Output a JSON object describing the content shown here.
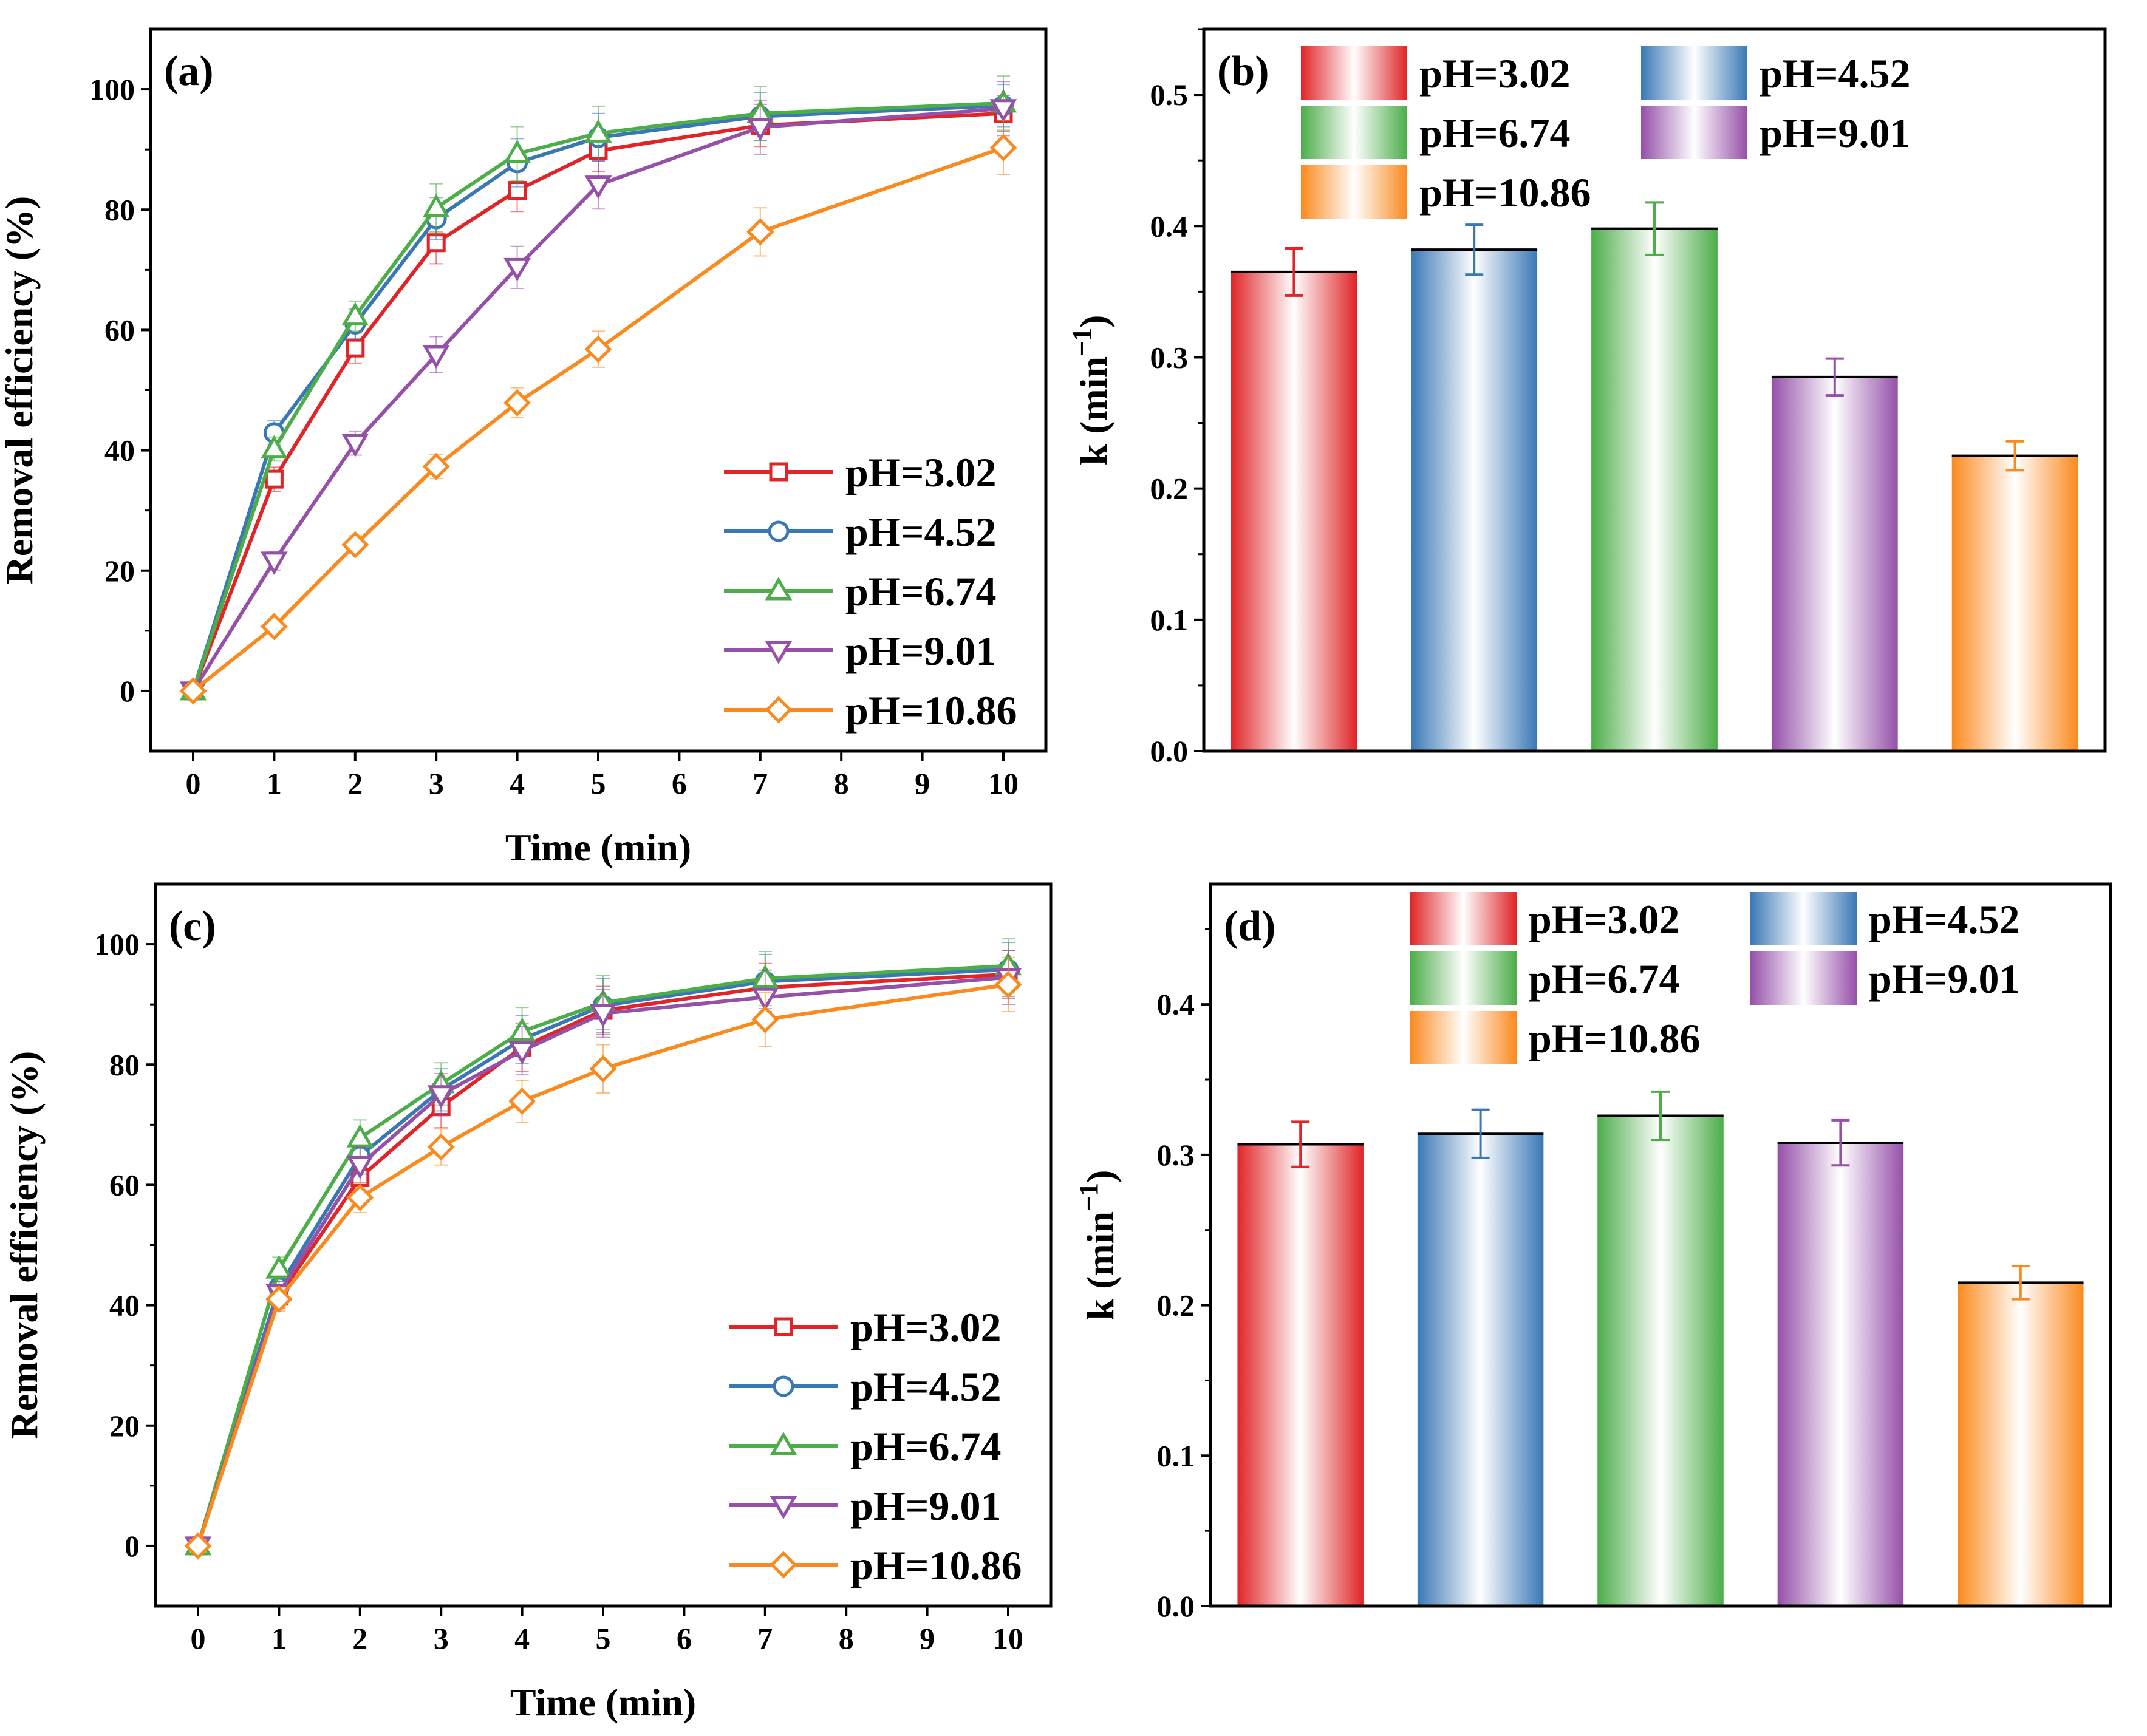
{
  "figure": {
    "series_colors": {
      "pH=3.02": "#E02427",
      "pH=4.52": "#3A78B5",
      "pH=6.74": "#4CAD49",
      "pH=9.01": "#9550A8",
      "pH=10.86": "#FA8A1E"
    }
  },
  "chart_data": [
    {
      "panel": "(a)",
      "type": "line",
      "x_categories": [
        "0",
        "1",
        "2",
        "3",
        "4",
        "5",
        "6",
        "7",
        "8",
        "9",
        "10"
      ],
      "xlabel": "Time (min)",
      "ylabel": "Removal efficiency (%)",
      "ylim": [
        -10,
        110
      ],
      "yticks": [
        0,
        20,
        40,
        60,
        80,
        100
      ],
      "legend_position": "bottom-right",
      "series": [
        {
          "name": "pH=3.02",
          "marker": "square",
          "x": [
            0,
            1,
            2,
            3,
            4,
            5,
            7,
            10
          ],
          "y": [
            0,
            35.2,
            57.0,
            74.5,
            83.2,
            89.8,
            94.0,
            96.0
          ],
          "err": [
            0.5,
            2.0,
            2.5,
            3.5,
            3.5,
            3.5,
            3.5,
            3.0
          ]
        },
        {
          "name": "pH=4.52",
          "marker": "circle",
          "x": [
            0,
            1,
            2,
            3,
            4,
            5,
            7,
            10
          ],
          "y": [
            0,
            42.9,
            61.0,
            78.5,
            87.8,
            92.0,
            95.5,
            97.3
          ],
          "err": [
            0.5,
            2.0,
            2.5,
            3.5,
            4.0,
            4.0,
            4.0,
            3.5
          ]
        },
        {
          "name": "pH=6.74",
          "marker": "triangle-up",
          "x": [
            0,
            1,
            2,
            3,
            4,
            5,
            7,
            10
          ],
          "y": [
            0,
            40.2,
            62.3,
            80.3,
            89.3,
            92.7,
            96.0,
            97.7
          ],
          "err": [
            0.5,
            2.0,
            2.5,
            4.0,
            4.5,
            4.5,
            4.5,
            4.5
          ]
        },
        {
          "name": "pH=9.01",
          "marker": "triangle-down",
          "x": [
            0,
            1,
            2,
            3,
            4,
            5,
            7,
            10
          ],
          "y": [
            0,
            21.6,
            41.2,
            55.9,
            70.4,
            84.1,
            93.7,
            96.8
          ],
          "err": [
            0.5,
            1.5,
            2.0,
            3.0,
            3.5,
            4.0,
            4.5,
            4.5
          ]
        },
        {
          "name": "pH=10.86",
          "marker": "diamond",
          "x": [
            0,
            1,
            2,
            3,
            4,
            5,
            7,
            10
          ],
          "y": [
            0,
            10.7,
            24.3,
            37.3,
            47.9,
            56.8,
            76.3,
            90.3
          ],
          "err": [
            0.5,
            1.0,
            1.5,
            2.0,
            2.5,
            3.0,
            4.0,
            4.5
          ]
        }
      ]
    },
    {
      "panel": "(b)",
      "type": "bar",
      "categories": [
        "pH=3.02",
        "pH=4.52",
        "pH=6.74",
        "pH=9.01",
        "pH=10.86"
      ],
      "values": [
        0.365,
        0.382,
        0.398,
        0.285,
        0.225
      ],
      "errors": [
        0.018,
        0.019,
        0.02,
        0.014,
        0.011
      ],
      "xlabel": "",
      "ylabel_main": "k (min",
      "ylabel_sup": "−1",
      "ylabel_close": ")",
      "ylim": [
        0,
        0.55
      ],
      "yticks": [
        0.0,
        0.1,
        0.2,
        0.3,
        0.4,
        0.5
      ],
      "legend_position": "top"
    },
    {
      "panel": "(c)",
      "type": "line",
      "x_categories": [
        "0",
        "1",
        "2",
        "3",
        "4",
        "5",
        "6",
        "7",
        "8",
        "9",
        "10"
      ],
      "xlabel": "Time (min)",
      "ylabel": "Removal efficiency (%)",
      "ylim": [
        -10,
        110
      ],
      "yticks": [
        0,
        20,
        40,
        60,
        80,
        100
      ],
      "legend_position": "bottom-right",
      "series": [
        {
          "name": "pH=3.02",
          "marker": "square",
          "x": [
            0,
            1,
            2,
            3,
            4,
            5,
            7,
            10
          ],
          "y": [
            0,
            41.5,
            61.2,
            73.0,
            82.9,
            89.0,
            92.8,
            95.0
          ],
          "err": [
            0.5,
            2.0,
            3.0,
            3.5,
            4.0,
            4.0,
            4.0,
            4.0
          ]
        },
        {
          "name": "pH=4.52",
          "marker": "circle",
          "x": [
            0,
            1,
            2,
            3,
            4,
            5,
            7,
            10
          ],
          "y": [
            0,
            43.0,
            64.8,
            75.8,
            84.2,
            89.8,
            93.8,
            95.8
          ],
          "err": [
            0.5,
            2.0,
            3.0,
            3.5,
            4.0,
            4.5,
            4.5,
            4.5
          ]
        },
        {
          "name": "pH=6.74",
          "marker": "triangle-up",
          "x": [
            0,
            1,
            2,
            3,
            4,
            5,
            7,
            10
          ],
          "y": [
            0,
            46.0,
            67.8,
            76.8,
            85.5,
            90.3,
            94.3,
            96.4
          ],
          "err": [
            0.5,
            2.0,
            3.0,
            3.5,
            4.0,
            4.5,
            4.5,
            4.5
          ]
        },
        {
          "name": "pH=9.01",
          "marker": "triangle-down",
          "x": [
            0,
            1,
            2,
            3,
            4,
            5,
            7,
            10
          ],
          "y": [
            0,
            42.0,
            63.3,
            75.0,
            82.3,
            88.5,
            91.2,
            94.5
          ],
          "err": [
            0.5,
            2.0,
            3.0,
            3.5,
            4.0,
            4.0,
            4.5,
            4.5
          ]
        },
        {
          "name": "pH=10.86",
          "marker": "diamond",
          "x": [
            0,
            1,
            2,
            3,
            4,
            5,
            7,
            10
          ],
          "y": [
            0,
            41.0,
            57.9,
            66.3,
            73.9,
            79.3,
            87.5,
            93.3
          ],
          "err": [
            0.5,
            2.0,
            2.5,
            3.0,
            3.5,
            4.0,
            4.5,
            4.5
          ]
        }
      ]
    },
    {
      "panel": "(d)",
      "type": "bar",
      "categories": [
        "pH=3.02",
        "pH=4.52",
        "pH=6.74",
        "pH=9.01",
        "pH=10.86"
      ],
      "values": [
        0.307,
        0.314,
        0.326,
        0.308,
        0.215
      ],
      "errors": [
        0.015,
        0.016,
        0.016,
        0.015,
        0.011
      ],
      "xlabel": "",
      "ylabel_main": "k (min",
      "ylabel_sup": "−1",
      "ylabel_close": ")",
      "ylim": [
        0,
        0.48
      ],
      "yticks": [
        0.0,
        0.1,
        0.2,
        0.3,
        0.4
      ],
      "legend_position": "top"
    }
  ]
}
